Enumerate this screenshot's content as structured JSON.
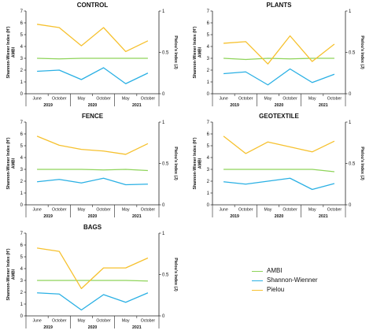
{
  "colors": {
    "AMBI": "#8fd45a",
    "Shannon-Wienner": "#2ab0e4",
    "Pielou": "#f6c12e",
    "axis": "#222222"
  },
  "legend": {
    "position": "right-of-bottom-panel",
    "items": [
      {
        "key": "AMBI",
        "label": "AMBI"
      },
      {
        "key": "Shannon-Wienner",
        "label": "Shannon-Wienner"
      },
      {
        "key": "Pielou",
        "label": "Pielou"
      }
    ]
  },
  "chart_data": [
    {
      "type": "line",
      "title": "CONTROL",
      "categories": [
        "June",
        "October",
        "May",
        "October",
        "May",
        "October"
      ],
      "year_labels": [
        "2019",
        "2020",
        "2021"
      ],
      "ylabel": "Shannon-Wiener Index (H')\nAMBI",
      "ylabel2": "Pielou's Index (J)",
      "ylim": [
        0,
        7
      ],
      "yticks": [
        0,
        1,
        2,
        3,
        4,
        5,
        6,
        7
      ],
      "ylim2": [
        0,
        1
      ],
      "yticks2": [
        0,
        0.5,
        1
      ],
      "series": [
        {
          "key": "AMBI",
          "axis": "left",
          "values": [
            3.0,
            2.95,
            3.0,
            3.0,
            3.0,
            3.0
          ]
        },
        {
          "key": "Shannon-Wienner",
          "axis": "left",
          "values": [
            1.9,
            2.0,
            1.2,
            2.2,
            0.85,
            1.75
          ]
        },
        {
          "key": "Pielou",
          "axis": "right",
          "values": [
            0.84,
            0.8,
            0.58,
            0.8,
            0.51,
            0.64
          ]
        }
      ]
    },
    {
      "type": "line",
      "title": "PLANTS",
      "categories": [
        "June",
        "October",
        "May",
        "October",
        "May",
        "October"
      ],
      "year_labels": [
        "2019",
        "2020",
        "2021"
      ],
      "ylabel": "Shannon-Wiener Index (H')\nAMBI",
      "ylabel2": "Pielou's Index (J)",
      "ylim": [
        0,
        7
      ],
      "yticks": [
        0,
        1,
        2,
        3,
        4,
        5,
        6,
        7
      ],
      "ylim2": [
        0,
        1
      ],
      "yticks2": [
        0,
        0.5,
        1
      ],
      "series": [
        {
          "key": "AMBI",
          "axis": "left",
          "values": [
            3.0,
            2.9,
            3.0,
            2.95,
            3.0,
            3.0
          ]
        },
        {
          "key": "Shannon-Wienner",
          "axis": "left",
          "values": [
            1.7,
            1.85,
            0.75,
            2.1,
            0.95,
            1.65
          ]
        },
        {
          "key": "Pielou",
          "axis": "right",
          "values": [
            0.61,
            0.63,
            0.36,
            0.7,
            0.39,
            0.6
          ]
        }
      ]
    },
    {
      "type": "line",
      "title": "FENCE",
      "categories": [
        "June",
        "October",
        "May",
        "October",
        "May",
        "October"
      ],
      "year_labels": [
        "2019",
        "2020",
        "2021"
      ],
      "ylabel": "Shannon-Wiener Index (H')\nAMBI",
      "ylabel2": "Pielou's Index (J)",
      "ylim": [
        0,
        7
      ],
      "yticks": [
        0,
        1,
        2,
        3,
        4,
        5,
        6,
        7
      ],
      "ylim2": [
        0,
        1
      ],
      "yticks2": [
        0,
        0.5,
        1
      ],
      "series": [
        {
          "key": "AMBI",
          "axis": "left",
          "values": [
            3.0,
            3.0,
            3.0,
            2.95,
            3.0,
            2.9
          ]
        },
        {
          "key": "Shannon-Wienner",
          "axis": "left",
          "values": [
            1.95,
            2.15,
            1.85,
            2.25,
            1.7,
            1.75
          ]
        },
        {
          "key": "Pielou",
          "axis": "right",
          "values": [
            0.83,
            0.72,
            0.67,
            0.65,
            0.61,
            0.74
          ]
        }
      ]
    },
    {
      "type": "line",
      "title": "GEOTEXTILE",
      "categories": [
        "June",
        "October",
        "May",
        "October",
        "May",
        "October"
      ],
      "year_labels": [
        "2019",
        "2020",
        "2021"
      ],
      "ylabel": "Shannon-Wiener Index (H')\nAMBI",
      "ylabel2": "Pielou's Index (J)",
      "ylim": [
        0,
        7
      ],
      "yticks": [
        0,
        1,
        2,
        3,
        4,
        5,
        6,
        7
      ],
      "ylim2": [
        0,
        1
      ],
      "yticks2": [
        0,
        0.5,
        1
      ],
      "series": [
        {
          "key": "AMBI",
          "axis": "left",
          "values": [
            3.0,
            3.0,
            3.0,
            3.0,
            3.0,
            2.8
          ]
        },
        {
          "key": "Shannon-Wienner",
          "axis": "left",
          "values": [
            1.95,
            1.75,
            2.0,
            2.25,
            1.3,
            1.8
          ]
        },
        {
          "key": "Pielou",
          "axis": "right",
          "values": [
            0.83,
            0.62,
            0.76,
            0.7,
            0.64,
            0.77
          ]
        }
      ]
    },
    {
      "type": "line",
      "title": "BAGS",
      "categories": [
        "June",
        "October",
        "May",
        "October",
        "May",
        "October"
      ],
      "year_labels": [
        "2019",
        "2020",
        "2021"
      ],
      "ylabel": "Shannon-Wiener Index (H')\nAMBI",
      "ylabel2": "Pielou's Index (J)",
      "ylim": [
        0,
        7
      ],
      "yticks": [
        0,
        1,
        2,
        3,
        4,
        5,
        6,
        7
      ],
      "ylim2": [
        0,
        1
      ],
      "yticks2": [
        0,
        0.5,
        1
      ],
      "series": [
        {
          "key": "AMBI",
          "axis": "left",
          "values": [
            3.0,
            3.0,
            3.0,
            3.0,
            3.0,
            2.95
          ]
        },
        {
          "key": "Shannon-Wienner",
          "axis": "left",
          "values": [
            1.95,
            1.85,
            0.5,
            1.8,
            1.15,
            1.95
          ]
        },
        {
          "key": "Pielou",
          "axis": "right",
          "values": [
            0.82,
            0.78,
            0.33,
            0.58,
            0.58,
            0.7
          ]
        }
      ]
    }
  ]
}
